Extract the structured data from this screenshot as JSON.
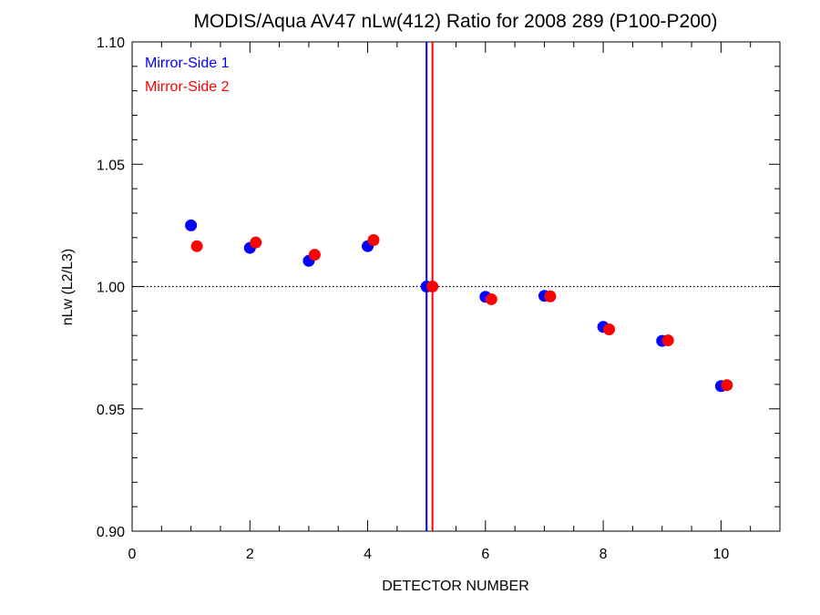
{
  "chart_data": {
    "type": "scatter",
    "title": "MODIS/Aqua AV47 nLw(412) Ratio for 2008 289 (P100-P200)",
    "xlabel": "DETECTOR NUMBER",
    "ylabel": "nLw (L2/L3)",
    "xlim": [
      0,
      11
    ],
    "ylim": [
      0.9,
      1.1
    ],
    "x_ticks": [
      0,
      2,
      4,
      6,
      8,
      10
    ],
    "x_tick_labels": [
      "0",
      "2",
      "4",
      "6",
      "8",
      "10"
    ],
    "y_ticks": [
      0.9,
      0.95,
      1.0,
      1.05,
      1.1
    ],
    "y_tick_labels": [
      "0.90",
      "0.95",
      "1.00",
      "1.05",
      "1.10"
    ],
    "reference_line": {
      "y": 1.0,
      "style": "dotted",
      "color": "#000000"
    },
    "vertical_lines": [
      {
        "x": 5.0,
        "color": "#0000ff"
      },
      {
        "x": 5.1,
        "color": "#ff0000"
      }
    ],
    "legend": {
      "position": "top-left"
    },
    "series": [
      {
        "name": "Mirror-Side 1",
        "color": "#0000ff",
        "x": [
          1,
          2,
          3,
          4,
          5,
          6,
          7,
          8,
          9,
          10
        ],
        "y": [
          1.025,
          1.0158,
          1.0105,
          1.0165,
          1.0,
          0.9958,
          0.9962,
          0.9835,
          0.9778,
          0.9593
        ]
      },
      {
        "name": "Mirror-Side 2",
        "color": "#ff0000",
        "x": [
          1.1,
          2.1,
          3.1,
          4.1,
          5.1,
          6.1,
          7.1,
          8.1,
          9.1,
          10.1
        ],
        "y": [
          1.0165,
          1.018,
          1.013,
          1.019,
          1.0,
          0.9948,
          0.996,
          0.9825,
          0.978,
          0.9597
        ]
      }
    ]
  }
}
